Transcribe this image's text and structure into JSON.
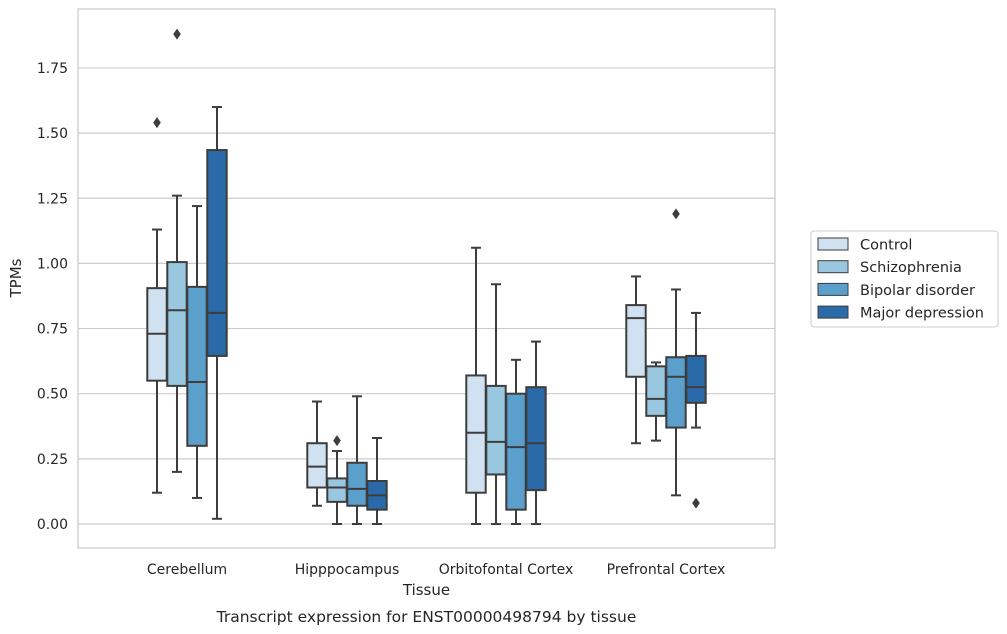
{
  "caption": "Transcript expression for ENST00000498794 by tissue",
  "chart_data": {
    "type": "box",
    "xlabel": "Tissue",
    "ylabel": "TPMs",
    "ylim": [
      -0.09,
      1.98
    ],
    "yticks": [
      0.0,
      0.25,
      0.5,
      0.75,
      1.0,
      1.25,
      1.5,
      1.75
    ],
    "ytick_labels": [
      "0.00",
      "0.25",
      "0.50",
      "0.75",
      "1.00",
      "1.25",
      "1.50",
      "1.75"
    ],
    "grid": true,
    "legend_position": "right",
    "categories": [
      "Cerebellum",
      "Hipppocampus",
      "Orbitofontal Cortex",
      "Prefrontal Cortex"
    ],
    "series": [
      {
        "name": "Control",
        "color": "#d0e1f2",
        "boxes": [
          {
            "whisker_low": 0.12,
            "q1": 0.55,
            "median": 0.73,
            "q3": 0.905,
            "whisker_high": 1.13,
            "outliers": [
              1.54
            ]
          },
          {
            "whisker_low": 0.07,
            "q1": 0.14,
            "median": 0.22,
            "q3": 0.31,
            "whisker_high": 0.47,
            "outliers": []
          },
          {
            "whisker_low": 0.0,
            "q1": 0.12,
            "median": 0.35,
            "q3": 0.57,
            "whisker_high": 1.06,
            "outliers": []
          },
          {
            "whisker_low": 0.31,
            "q1": 0.565,
            "median": 0.79,
            "q3": 0.84,
            "whisker_high": 0.95,
            "outliers": []
          }
        ]
      },
      {
        "name": "Schizophrenia",
        "color": "#9ac7e0",
        "boxes": [
          {
            "whisker_low": 0.2,
            "q1": 0.53,
            "median": 0.82,
            "q3": 1.005,
            "whisker_high": 1.26,
            "outliers": [
              1.88
            ]
          },
          {
            "whisker_low": 0.0,
            "q1": 0.085,
            "median": 0.14,
            "q3": 0.175,
            "whisker_high": 0.28,
            "outliers": [
              0.32
            ]
          },
          {
            "whisker_low": 0.0,
            "q1": 0.19,
            "median": 0.315,
            "q3": 0.53,
            "whisker_high": 0.92,
            "outliers": []
          },
          {
            "whisker_low": 0.32,
            "q1": 0.415,
            "median": 0.48,
            "q3": 0.605,
            "whisker_high": 0.62,
            "outliers": []
          }
        ]
      },
      {
        "name": "Bipolar disorder",
        "color": "#5b9fcd",
        "boxes": [
          {
            "whisker_low": 0.1,
            "q1": 0.3,
            "median": 0.545,
            "q3": 0.91,
            "whisker_high": 1.22,
            "outliers": []
          },
          {
            "whisker_low": 0.0,
            "q1": 0.07,
            "median": 0.135,
            "q3": 0.235,
            "whisker_high": 0.49,
            "outliers": []
          },
          {
            "whisker_low": 0.0,
            "q1": 0.055,
            "median": 0.295,
            "q3": 0.5,
            "whisker_high": 0.63,
            "outliers": []
          },
          {
            "whisker_low": 0.11,
            "q1": 0.37,
            "median": 0.565,
            "q3": 0.64,
            "whisker_high": 0.9,
            "outliers": [
              1.19
            ]
          }
        ]
      },
      {
        "name": "Major depression",
        "color": "#2b6aa8",
        "boxes": [
          {
            "whisker_low": 0.02,
            "q1": 0.645,
            "median": 0.81,
            "q3": 1.435,
            "whisker_high": 1.6,
            "outliers": []
          },
          {
            "whisker_low": 0.0,
            "q1": 0.055,
            "median": 0.11,
            "q3": 0.165,
            "whisker_high": 0.33,
            "outliers": []
          },
          {
            "whisker_low": 0.0,
            "q1": 0.13,
            "median": 0.31,
            "q3": 0.525,
            "whisker_high": 0.7,
            "outliers": []
          },
          {
            "whisker_low": 0.37,
            "q1": 0.465,
            "median": 0.525,
            "q3": 0.645,
            "whisker_high": 0.81,
            "outliers": [
              0.08
            ]
          }
        ]
      }
    ]
  }
}
